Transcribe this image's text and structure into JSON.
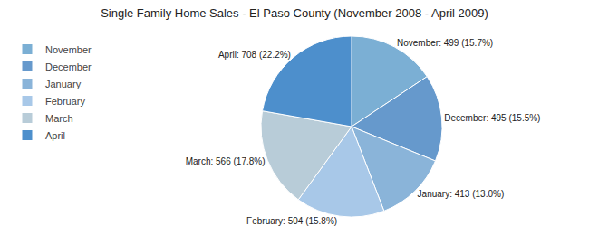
{
  "chart_data": {
    "type": "pie",
    "title": "Single Family Home Sales - El Paso County (November 2008 - April 2009)",
    "categories": [
      "November",
      "December",
      "January",
      "February",
      "March",
      "April"
    ],
    "values": [
      499,
      495,
      413,
      504,
      566,
      708
    ],
    "value_labels": [
      "November: 499 (15.7%)",
      "December: 495 (15.5%)",
      "January: 413 (13.0%)",
      "February: 504 (15.8%)",
      "March: 566 (17.8%)",
      "April: 708 (22.2%)"
    ],
    "colors": [
      "#7bafd4",
      "#6699cc",
      "#8ab4d9",
      "#a8c8e8",
      "#b8ccd8",
      "#4d8fcc"
    ],
    "data_labels": true,
    "legend": "upper left"
  }
}
